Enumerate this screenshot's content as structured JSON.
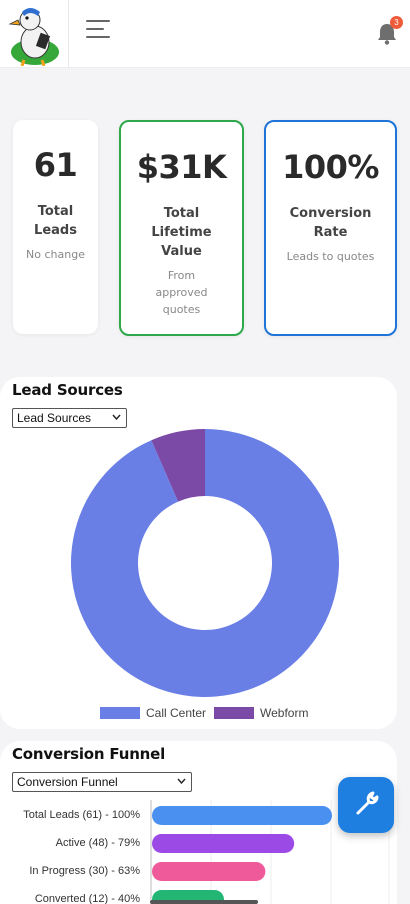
{
  "header": {
    "notification_count": "3"
  },
  "kpis": [
    {
      "value": "61",
      "label": "Total Leads",
      "sub": "No change",
      "border": "none"
    },
    {
      "value": "$31K",
      "label": "Total Lifetime Value",
      "sub": "From approved quotes",
      "border": "#2ea84a"
    },
    {
      "value": "100%",
      "label": "Conversion Rate",
      "sub": "Leads to quotes",
      "border": "#1f74d8"
    }
  ],
  "lead_sources": {
    "title": "Lead Sources",
    "select_value": "Lead Sources",
    "legend": [
      {
        "label": "Call Center",
        "color": "#6a7fe6"
      },
      {
        "label": "Webform",
        "color": "#7b4aa6"
      }
    ]
  },
  "conversion_funnel": {
    "title": "Conversion Funnel",
    "select_value": "Conversion Funnel",
    "stages": [
      {
        "label": "Total Leads (61) - 100%",
        "percent": 100,
        "color": "#4a90f0"
      },
      {
        "label": "Active (48) - 79%",
        "percent": 79,
        "color": "#9b4ae6"
      },
      {
        "label": "In Progress (30) - 63%",
        "percent": 63,
        "color": "#ee5a9a"
      },
      {
        "label": "Converted (12) - 40%",
        "percent": 40,
        "color": "#22b573"
      }
    ]
  },
  "chart_data": {
    "type": "pie",
    "categories": [
      "Call Center",
      "Webform"
    ],
    "values": [
      57,
      4
    ],
    "hole": true
  },
  "colors": {
    "accent": "#1f7fe0"
  }
}
